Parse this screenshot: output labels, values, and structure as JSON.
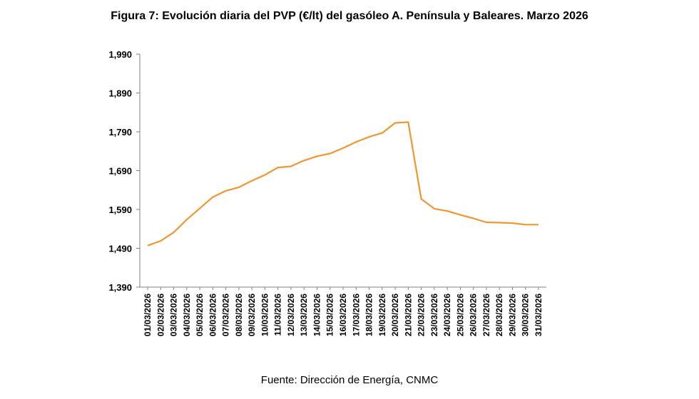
{
  "title": "Figura 7: Evolución diaria del PVP (€/lt) del gasóleo A. Península y Baleares. Marzo 2026",
  "source": "Fuente: Dirección de Energía, CNMC",
  "chart_data": {
    "type": "line",
    "title": "Figura 7: Evolución diaria del PVP (€/lt) del gasóleo A. Península y Baleares. Marzo 2026",
    "xlabel": "",
    "ylabel": "",
    "ylim": [
      1.39,
      1.99
    ],
    "yticks": [
      "1,990",
      "1,890",
      "1,790",
      "1,690",
      "1,590",
      "1,490",
      "1,390"
    ],
    "ytick_values": [
      1.99,
      1.89,
      1.79,
      1.69,
      1.59,
      1.49,
      1.39
    ],
    "grid": false,
    "legend": "none",
    "line_color": "#F0962F",
    "x": [
      "01/03/2026",
      "02/03/2026",
      "03/03/2026",
      "04/03/2026",
      "05/03/2026",
      "06/03/2026",
      "07/03/2026",
      "08/03/2026",
      "09/03/2026",
      "10/03/2026",
      "11/03/2026",
      "12/03/2026",
      "13/03/2026",
      "14/03/2026",
      "15/03/2026",
      "16/03/2026",
      "17/03/2026",
      "18/03/2026",
      "19/03/2026",
      "20/03/2026",
      "21/03/2026",
      "22/03/2026",
      "23/03/2026",
      "24/03/2026",
      "25/03/2026",
      "26/03/2026",
      "27/03/2026",
      "28/03/2026",
      "29/03/2026",
      "30/03/2026",
      "31/03/2026"
    ],
    "series": [
      {
        "values": [
          1.497,
          1.509,
          1.531,
          1.564,
          1.593,
          1.622,
          1.638,
          1.647,
          1.664,
          1.679,
          1.698,
          1.701,
          1.716,
          1.727,
          1.734,
          1.748,
          1.764,
          1.777,
          1.787,
          1.813,
          1.815,
          1.617,
          1.592,
          1.586,
          1.576,
          1.567,
          1.557,
          1.556,
          1.555,
          1.551,
          1.551
        ]
      }
    ]
  }
}
